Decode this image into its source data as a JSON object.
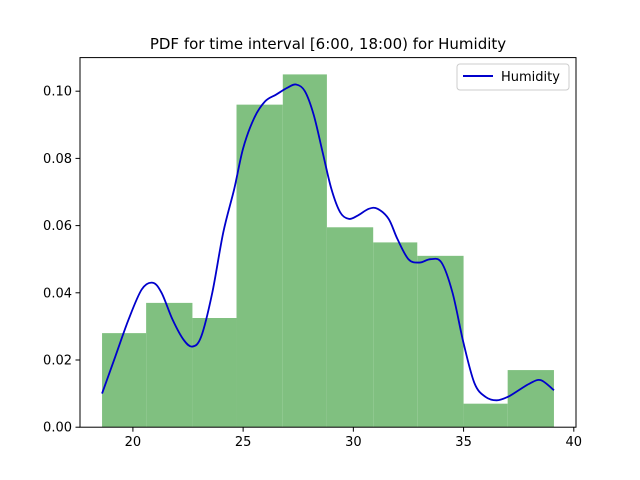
{
  "chart_data": {
    "type": "histogram",
    "title": "PDF for time interval [6:00, 18:00) for Humidity",
    "xlabel": "",
    "ylabel": "",
    "xlim": [
      17.6,
      40.1
    ],
    "ylim": [
      0,
      0.11
    ],
    "xticks": [
      20,
      25,
      30,
      35,
      40
    ],
    "xtick_labels": [
      "20",
      "25",
      "30",
      "35",
      "40"
    ],
    "yticks": [
      0,
      0.02,
      0.04,
      0.06,
      0.08,
      0.1
    ],
    "ytick_labels": [
      "0.00",
      "0.02",
      "0.04",
      "0.06",
      "0.08",
      "0.10"
    ],
    "grid": false,
    "legend": {
      "placement": "top-right",
      "entries": [
        "Humidity"
      ]
    },
    "histogram": {
      "color": "#80c080",
      "bins": [
        {
          "x0": 18.6,
          "x1": 20.6,
          "density": 0.028
        },
        {
          "x0": 20.6,
          "x1": 22.7,
          "density": 0.037
        },
        {
          "x0": 22.7,
          "x1": 24.7,
          "density": 0.0325
        },
        {
          "x0": 24.7,
          "x1": 26.8,
          "density": 0.096
        },
        {
          "x0": 26.8,
          "x1": 28.8,
          "density": 0.105
        },
        {
          "x0": 28.8,
          "x1": 30.9,
          "density": 0.0595
        },
        {
          "x0": 30.9,
          "x1": 32.9,
          "density": 0.055
        },
        {
          "x0": 32.9,
          "x1": 35.0,
          "density": 0.051
        },
        {
          "x0": 35.0,
          "x1": 37.0,
          "density": 0.007
        },
        {
          "x0": 37.0,
          "x1": 39.1,
          "density": 0.017
        }
      ]
    },
    "series": [
      {
        "name": "Humidity",
        "type": "line",
        "color": "#0000cc",
        "x": [
          18.6,
          19.2,
          19.8,
          20.4,
          20.9,
          21.3,
          21.8,
          22.3,
          22.7,
          23.1,
          23.6,
          24.1,
          24.6,
          25.0,
          25.5,
          26.0,
          26.5,
          27.0,
          27.4,
          27.8,
          28.2,
          28.6,
          29.0,
          29.4,
          29.8,
          30.2,
          30.7,
          31.1,
          31.6,
          32.0,
          32.5,
          33.0,
          33.5,
          34.0,
          34.5,
          35.0,
          35.5,
          36.0,
          36.5,
          37.0,
          37.5,
          38.0,
          38.5,
          39.1
        ],
        "y": [
          0.01,
          0.021,
          0.032,
          0.041,
          0.043,
          0.04,
          0.032,
          0.026,
          0.024,
          0.027,
          0.04,
          0.058,
          0.071,
          0.083,
          0.092,
          0.097,
          0.099,
          0.101,
          0.102,
          0.1,
          0.093,
          0.082,
          0.071,
          0.064,
          0.062,
          0.063,
          0.065,
          0.065,
          0.062,
          0.056,
          0.05,
          0.049,
          0.05,
          0.049,
          0.04,
          0.025,
          0.013,
          0.009,
          0.008,
          0.009,
          0.011,
          0.013,
          0.014,
          0.011
        ]
      }
    ]
  }
}
